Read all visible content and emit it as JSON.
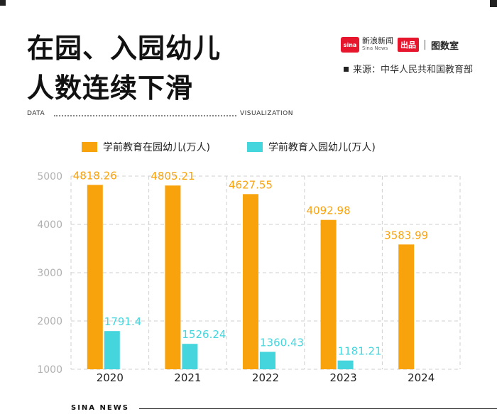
{
  "header": {
    "title_line1": "在园、入园幼儿",
    "title_line2": "人数连续下滑",
    "brand_sina_logo": "sina",
    "brand_sina_cn": "新浪新闻",
    "brand_sina_en": "Sina News",
    "brand_chupin": "出品",
    "brand_tushi": "图数室",
    "source": "来源：中华人民共和国教育部"
  },
  "divider": {
    "left_label": "DATA",
    "right_label": "VISUALIZATION"
  },
  "footer": {
    "text": "SINA NEWS"
  },
  "colors": {
    "enrolled": "#F9A30C",
    "admitted": "#45D5DD"
  },
  "chart_data": {
    "type": "bar",
    "categories": [
      "2020",
      "2021",
      "2022",
      "2023",
      "2024"
    ],
    "series": [
      {
        "name": "学前教育在园幼儿(万人)",
        "values": [
          4818.26,
          4805.21,
          4627.55,
          4092.98,
          3583.99
        ]
      },
      {
        "name": "学前教育入园幼儿(万人)",
        "values": [
          1791.4,
          1526.24,
          1360.43,
          1181.21,
          null
        ]
      }
    ],
    "data_labels": [
      [
        "4818.26",
        "4805.21",
        "4627.55",
        "4092.98",
        "3583.99"
      ],
      [
        "1791.4",
        "1526.24",
        "1360.43",
        "1181.21",
        ""
      ]
    ],
    "yticks": [
      1000,
      2000,
      3000,
      4000,
      5000
    ],
    "ylim": [
      1000,
      5000
    ],
    "grid": true,
    "legend_position": "top"
  }
}
